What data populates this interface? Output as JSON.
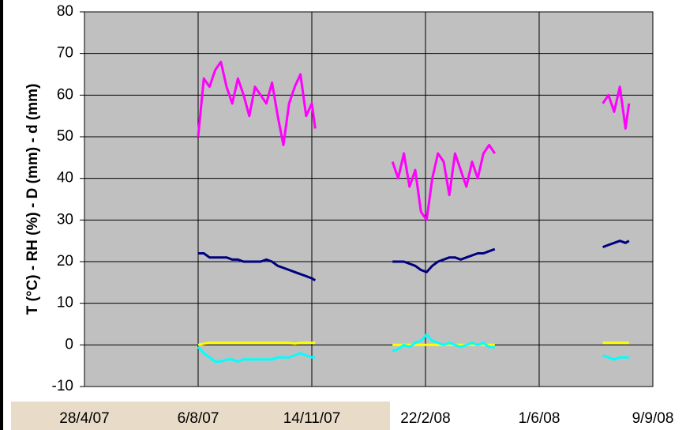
{
  "chart_data": {
    "type": "line",
    "y_label": "T (°C) - RH (%) - D (mm) - d (mm)",
    "x": [
      "6/8/07",
      "11/8/07",
      "16/8/07",
      "21/8/07",
      "26/8/07",
      "31/8/07",
      "5/9/07",
      "10/9/07",
      "15/9/07",
      "20/9/07",
      "25/9/07",
      "30/9/07",
      "5/10/07",
      "10/10/07",
      "15/10/07",
      "20/10/07",
      "25/10/07",
      "30/10/07",
      "4/11/07",
      "9/11/07",
      "14/11/07",
      "17/11/07",
      "24/1/08",
      "29/1/08",
      "3/2/08",
      "8/2/08",
      "13/2/08",
      "18/2/08",
      "23/2/08",
      "28/2/08",
      "4/3/08",
      "9/3/08",
      "14/3/08",
      "19/3/08",
      "24/3/08",
      "29/3/08",
      "3/4/08",
      "8/4/08",
      "13/4/08",
      "18/4/08",
      "23/4/08",
      "27/7/08",
      "1/8/08",
      "6/8/08",
      "11/8/08",
      "16/8/08",
      "19/8/08"
    ],
    "series": [
      {
        "color": "#ff00ff",
        "values": [
          50,
          64,
          62,
          66,
          68,
          62,
          58,
          64,
          60,
          55,
          62,
          60,
          58,
          63,
          55,
          48,
          58,
          62,
          65,
          55,
          58,
          52,
          44,
          40,
          46,
          38,
          42,
          32,
          30,
          40,
          46,
          44,
          36,
          46,
          42,
          38,
          44,
          40,
          46,
          48,
          46,
          58,
          60,
          56,
          62,
          52,
          58
        ]
      },
      {
        "color": "#000080",
        "values": [
          22,
          22,
          21,
          21,
          21,
          21,
          20.5,
          20.5,
          20,
          20,
          20,
          20,
          20.5,
          20,
          19,
          18.5,
          18,
          17.5,
          17,
          16.5,
          16,
          15.5,
          20,
          20,
          20,
          19.5,
          19,
          18,
          17.5,
          19,
          20,
          20.5,
          21,
          21,
          20.5,
          21,
          21.5,
          22,
          22,
          22.5,
          23,
          23.5,
          24,
          24.5,
          25,
          24.5,
          25
        ]
      },
      {
        "color": "#ffff00",
        "values": [
          0,
          0.3,
          0.5,
          0.5,
          0.5,
          0.5,
          0.5,
          0.5,
          0.5,
          0.5,
          0.5,
          0.5,
          0.5,
          0.5,
          0.5,
          0.5,
          0.5,
          0.3,
          0.5,
          0.5,
          0.5,
          0.5,
          0,
          0,
          0,
          0,
          0,
          0,
          0,
          0,
          0,
          0,
          0,
          0,
          0,
          0,
          0,
          0,
          0,
          0,
          0,
          0.5,
          0.5,
          0.5,
          0.5,
          0.5,
          0.5
        ]
      },
      {
        "color": "#00ffff",
        "values": [
          -0.5,
          -2,
          -3,
          -4,
          -4,
          -3.5,
          -3.5,
          -4,
          -3.5,
          -3.5,
          -3.5,
          -3.5,
          -3.5,
          -3.5,
          -3,
          -3,
          -3,
          -2.5,
          -2,
          -2.5,
          -3,
          -3,
          -1.5,
          -1,
          0,
          -0.5,
          0.5,
          1,
          2.5,
          1,
          0.5,
          0,
          0.5,
          0,
          -0.5,
          0,
          0.5,
          0,
          0.5,
          -0.5,
          -0.5,
          -2.5,
          -3,
          -3.5,
          -3,
          -3,
          -3
        ]
      }
    ],
    "xticks": [
      "28/4/07",
      "6/8/07",
      "14/11/07",
      "22/2/08",
      "1/6/08",
      "9/9/08"
    ],
    "ylim": [
      -10,
      80
    ],
    "yticks": [
      -10,
      0,
      10,
      20,
      30,
      40,
      50,
      60,
      70,
      80
    ],
    "grid": true,
    "background": "#c0c0c0"
  }
}
